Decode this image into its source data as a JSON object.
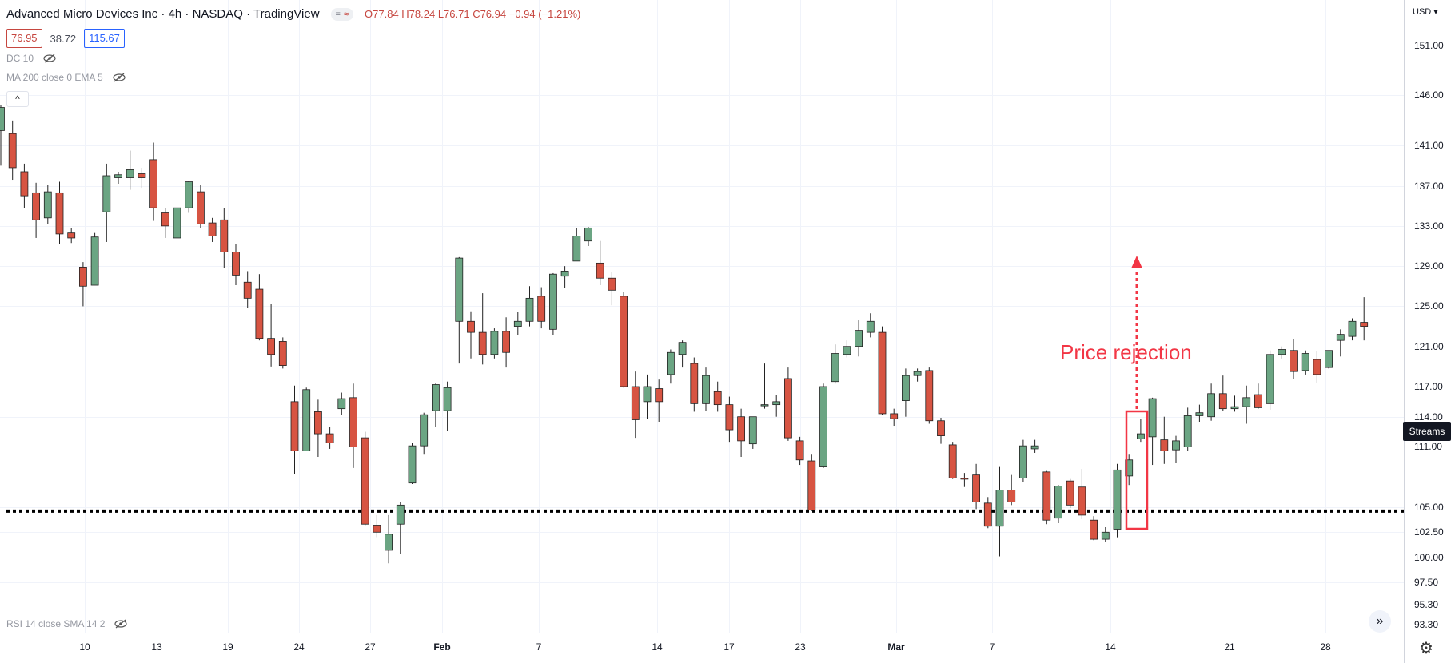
{
  "header": {
    "title": "Advanced Micro Devices Inc · 4h · NASDAQ · TradingView",
    "flag_left": "=",
    "flag_right": "≈",
    "ohlc": "O77.84  H78.24  L76.71  C76.94  −0.94 (−1.21%)",
    "sell_price": "76.95",
    "mid_value": "38.72",
    "buy_price": "115.67"
  },
  "indicators": {
    "dc": "DC 10",
    "ma": "MA 200 close 0 EMA 5",
    "rsi": "RSI 14 close SMA 14 2",
    "collapse": "^"
  },
  "price_scale": {
    "currency": "USD",
    "ticks": [
      "151.00",
      "146.00",
      "141.00",
      "137.00",
      "133.00",
      "129.00",
      "125.00",
      "121.00",
      "117.00",
      "114.00",
      "111.00",
      "105.00",
      "102.50",
      "100.00",
      "97.50",
      "95.30",
      "93.30"
    ],
    "streams_label": "Streams"
  },
  "time_scale": {
    "ticks": [
      {
        "label": "10",
        "bold": false
      },
      {
        "label": "13",
        "bold": false
      },
      {
        "label": "19",
        "bold": false
      },
      {
        "label": "24",
        "bold": false
      },
      {
        "label": "27",
        "bold": false
      },
      {
        "label": "Feb",
        "bold": true
      },
      {
        "label": "7",
        "bold": false
      },
      {
        "label": "14",
        "bold": false
      },
      {
        "label": "17",
        "bold": false
      },
      {
        "label": "23",
        "bold": false
      },
      {
        "label": "Mar",
        "bold": true
      },
      {
        "label": "7",
        "bold": false
      },
      {
        "label": "14",
        "bold": false
      },
      {
        "label": "21",
        "bold": false
      },
      {
        "label": "28",
        "bold": false
      }
    ],
    "goto_label": "»",
    "settings_icon": "⚙"
  },
  "annotation": {
    "text": "Price rejection",
    "support_level": 104.6,
    "color": "#f23645"
  },
  "colors": {
    "up": "#6ba583",
    "down": "#d75442",
    "grid": "#f0f3fa"
  },
  "chart_data": {
    "type": "candlestick",
    "title": "Advanced Micro Devices Inc · 4h · NASDAQ",
    "xlabel": "",
    "ylabel": "",
    "ylim": [
      92.5,
      155.5
    ],
    "grid": true,
    "legend": "none",
    "candles": [
      {
        "o": 142.5,
        "h": 145.0,
        "l": 139.0,
        "c": 144.8
      },
      {
        "o": 142.2,
        "h": 143.5,
        "l": 137.6,
        "c": 138.8
      },
      {
        "o": 138.4,
        "h": 139.2,
        "l": 134.8,
        "c": 136.0
      },
      {
        "o": 136.3,
        "h": 137.3,
        "l": 131.8,
        "c": 133.6
      },
      {
        "o": 133.8,
        "h": 137.1,
        "l": 133.2,
        "c": 136.4
      },
      {
        "o": 136.3,
        "h": 137.4,
        "l": 131.2,
        "c": 132.2
      },
      {
        "o": 132.3,
        "h": 132.8,
        "l": 131.3,
        "c": 131.8
      },
      {
        "o": 128.9,
        "h": 129.4,
        "l": 125.0,
        "c": 127.0
      },
      {
        "o": 127.1,
        "h": 132.3,
        "l": 127.1,
        "c": 131.9
      },
      {
        "o": 134.4,
        "h": 139.2,
        "l": 131.4,
        "c": 138.0
      },
      {
        "o": 137.8,
        "h": 138.4,
        "l": 137.2,
        "c": 138.1
      },
      {
        "o": 137.8,
        "h": 140.5,
        "l": 136.6,
        "c": 138.6
      },
      {
        "o": 138.2,
        "h": 138.8,
        "l": 136.8,
        "c": 137.8
      },
      {
        "o": 139.6,
        "h": 141.3,
        "l": 133.5,
        "c": 134.8
      },
      {
        "o": 134.3,
        "h": 134.8,
        "l": 131.8,
        "c": 133.0
      },
      {
        "o": 131.8,
        "h": 134.8,
        "l": 131.3,
        "c": 134.8
      },
      {
        "o": 134.8,
        "h": 137.5,
        "l": 134.3,
        "c": 137.4
      },
      {
        "o": 136.4,
        "h": 137.1,
        "l": 132.8,
        "c": 133.2
      },
      {
        "o": 133.3,
        "h": 133.8,
        "l": 131.4,
        "c": 132.0
      },
      {
        "o": 133.6,
        "h": 134.8,
        "l": 128.8,
        "c": 130.4
      },
      {
        "o": 130.4,
        "h": 131.2,
        "l": 127.1,
        "c": 128.1
      },
      {
        "o": 127.4,
        "h": 128.5,
        "l": 124.8,
        "c": 125.8
      },
      {
        "o": 126.7,
        "h": 128.2,
        "l": 121.6,
        "c": 121.8
      },
      {
        "o": 121.8,
        "h": 125.2,
        "l": 119.0,
        "c": 120.2
      },
      {
        "o": 121.5,
        "h": 121.9,
        "l": 118.8,
        "c": 119.1
      },
      {
        "o": 115.5,
        "h": 117.1,
        "l": 108.3,
        "c": 110.6
      },
      {
        "o": 110.6,
        "h": 116.9,
        "l": 110.6,
        "c": 116.7
      },
      {
        "o": 114.5,
        "h": 115.7,
        "l": 110.0,
        "c": 112.3
      },
      {
        "o": 112.3,
        "h": 113.0,
        "l": 110.8,
        "c": 111.4
      },
      {
        "o": 114.8,
        "h": 116.4,
        "l": 114.2,
        "c": 115.8
      },
      {
        "o": 115.9,
        "h": 117.3,
        "l": 108.9,
        "c": 111.0
      },
      {
        "o": 111.9,
        "h": 112.5,
        "l": 103.2,
        "c": 103.3
      },
      {
        "o": 103.2,
        "h": 104.2,
        "l": 102.0,
        "c": 102.5
      },
      {
        "o": 100.7,
        "h": 104.2,
        "l": 99.4,
        "c": 102.3
      },
      {
        "o": 103.3,
        "h": 105.5,
        "l": 100.3,
        "c": 105.2
      },
      {
        "o": 107.4,
        "h": 111.4,
        "l": 107.3,
        "c": 111.1
      },
      {
        "o": 111.1,
        "h": 114.4,
        "l": 110.3,
        "c": 114.2
      },
      {
        "o": 114.6,
        "h": 117.3,
        "l": 113.0,
        "c": 117.2
      },
      {
        "o": 114.6,
        "h": 117.5,
        "l": 112.6,
        "c": 116.9
      },
      {
        "o": 123.5,
        "h": 129.9,
        "l": 119.3,
        "c": 129.8
      },
      {
        "o": 123.5,
        "h": 124.5,
        "l": 119.8,
        "c": 122.4
      },
      {
        "o": 122.4,
        "h": 126.3,
        "l": 119.2,
        "c": 120.2
      },
      {
        "o": 120.2,
        "h": 122.8,
        "l": 119.8,
        "c": 122.5
      },
      {
        "o": 122.5,
        "h": 123.9,
        "l": 118.9,
        "c": 120.4
      },
      {
        "o": 123.0,
        "h": 124.4,
        "l": 122.1,
        "c": 123.5
      },
      {
        "o": 123.5,
        "h": 127.0,
        "l": 123.0,
        "c": 125.8
      },
      {
        "o": 126.0,
        "h": 126.9,
        "l": 122.8,
        "c": 123.5
      },
      {
        "o": 122.7,
        "h": 128.3,
        "l": 122.1,
        "c": 128.2
      },
      {
        "o": 128.0,
        "h": 129.0,
        "l": 126.8,
        "c": 128.5
      },
      {
        "o": 129.5,
        "h": 132.8,
        "l": 129.5,
        "c": 132.0
      },
      {
        "o": 131.5,
        "h": 132.9,
        "l": 131.0,
        "c": 132.8
      },
      {
        "o": 129.3,
        "h": 131.5,
        "l": 127.1,
        "c": 127.8
      },
      {
        "o": 127.8,
        "h": 128.4,
        "l": 125.1,
        "c": 126.6
      },
      {
        "o": 126.0,
        "h": 126.4,
        "l": 116.9,
        "c": 117.0
      },
      {
        "o": 117.0,
        "h": 118.5,
        "l": 111.9,
        "c": 113.7
      },
      {
        "o": 115.5,
        "h": 118.2,
        "l": 113.8,
        "c": 117.0
      },
      {
        "o": 116.8,
        "h": 117.7,
        "l": 113.5,
        "c": 115.5
      },
      {
        "o": 118.2,
        "h": 120.7,
        "l": 117.3,
        "c": 120.4
      },
      {
        "o": 120.2,
        "h": 121.6,
        "l": 118.9,
        "c": 121.4
      },
      {
        "o": 119.3,
        "h": 119.9,
        "l": 114.5,
        "c": 115.3
      },
      {
        "o": 115.3,
        "h": 118.9,
        "l": 114.6,
        "c": 118.1
      },
      {
        "o": 116.5,
        "h": 117.5,
        "l": 114.5,
        "c": 115.2
      },
      {
        "o": 115.2,
        "h": 116.0,
        "l": 111.5,
        "c": 112.7
      },
      {
        "o": 114.0,
        "h": 114.8,
        "l": 110.0,
        "c": 111.6
      },
      {
        "o": 111.3,
        "h": 114.0,
        "l": 110.8,
        "c": 114.0
      },
      {
        "o": 115.2,
        "h": 119.3,
        "l": 114.8,
        "c": 115.2
      },
      {
        "o": 115.2,
        "h": 116.2,
        "l": 114.0,
        "c": 115.5
      },
      {
        "o": 117.8,
        "h": 118.9,
        "l": 111.6,
        "c": 111.9
      },
      {
        "o": 111.6,
        "h": 112.0,
        "l": 109.2,
        "c": 109.7
      },
      {
        "o": 109.6,
        "h": 110.3,
        "l": 104.6,
        "c": 104.7
      },
      {
        "o": 109.0,
        "h": 117.3,
        "l": 108.9,
        "c": 117.0
      },
      {
        "o": 117.5,
        "h": 121.2,
        "l": 117.3,
        "c": 120.3
      },
      {
        "o": 120.2,
        "h": 121.6,
        "l": 119.9,
        "c": 121.0
      },
      {
        "o": 121.0,
        "h": 123.6,
        "l": 120.0,
        "c": 122.6
      },
      {
        "o": 122.4,
        "h": 124.3,
        "l": 121.9,
        "c": 123.5
      },
      {
        "o": 122.4,
        "h": 123.0,
        "l": 114.2,
        "c": 114.3
      },
      {
        "o": 114.3,
        "h": 114.8,
        "l": 113.1,
        "c": 113.8
      },
      {
        "o": 115.6,
        "h": 118.8,
        "l": 114.0,
        "c": 118.1
      },
      {
        "o": 118.1,
        "h": 118.8,
        "l": 117.5,
        "c": 118.5
      },
      {
        "o": 118.6,
        "h": 118.9,
        "l": 113.3,
        "c": 113.6
      },
      {
        "o": 113.6,
        "h": 113.9,
        "l": 111.3,
        "c": 112.1
      },
      {
        "o": 111.2,
        "h": 111.5,
        "l": 107.8,
        "c": 107.9
      },
      {
        "o": 107.9,
        "h": 108.4,
        "l": 107.0,
        "c": 107.8
      },
      {
        "o": 108.2,
        "h": 109.3,
        "l": 104.8,
        "c": 105.5
      },
      {
        "o": 105.4,
        "h": 106.0,
        "l": 102.9,
        "c": 103.1
      },
      {
        "o": 103.1,
        "h": 109.0,
        "l": 100.1,
        "c": 106.7
      },
      {
        "o": 106.7,
        "h": 108.2,
        "l": 105.2,
        "c": 105.5
      },
      {
        "o": 107.9,
        "h": 111.7,
        "l": 107.5,
        "c": 111.1
      },
      {
        "o": 110.8,
        "h": 111.7,
        "l": 110.4,
        "c": 111.1
      },
      {
        "o": 108.5,
        "h": 108.6,
        "l": 103.3,
        "c": 103.7
      },
      {
        "o": 103.9,
        "h": 107.2,
        "l": 103.4,
        "c": 107.1
      },
      {
        "o": 107.6,
        "h": 107.8,
        "l": 104.9,
        "c": 105.2
      },
      {
        "o": 107.0,
        "h": 108.8,
        "l": 103.8,
        "c": 104.2
      },
      {
        "o": 103.7,
        "h": 104.1,
        "l": 101.7,
        "c": 101.8
      },
      {
        "o": 101.8,
        "h": 103.0,
        "l": 101.5,
        "c": 102.5
      },
      {
        "o": 102.8,
        "h": 109.3,
        "l": 102.0,
        "c": 108.7
      },
      {
        "o": 108.1,
        "h": 110.3,
        "l": 107.2,
        "c": 109.7
      },
      {
        "o": 111.8,
        "h": 113.8,
        "l": 111.5,
        "c": 112.3
      },
      {
        "o": 112.0,
        "h": 115.9,
        "l": 109.2,
        "c": 115.8
      },
      {
        "o": 111.7,
        "h": 114.0,
        "l": 109.3,
        "c": 110.6
      },
      {
        "o": 110.7,
        "h": 112.1,
        "l": 109.4,
        "c": 111.6
      },
      {
        "o": 111.0,
        "h": 114.9,
        "l": 110.6,
        "c": 114.1
      },
      {
        "o": 114.1,
        "h": 115.2,
        "l": 113.5,
        "c": 114.4
      },
      {
        "o": 114.0,
        "h": 117.3,
        "l": 113.6,
        "c": 116.3
      },
      {
        "o": 116.3,
        "h": 118.1,
        "l": 114.6,
        "c": 114.8
      },
      {
        "o": 114.8,
        "h": 116.1,
        "l": 114.5,
        "c": 115.0
      },
      {
        "o": 115.0,
        "h": 117.1,
        "l": 113.3,
        "c": 115.9
      },
      {
        "o": 116.2,
        "h": 117.3,
        "l": 114.8,
        "c": 114.9
      },
      {
        "o": 115.3,
        "h": 120.6,
        "l": 114.7,
        "c": 120.2
      },
      {
        "o": 120.2,
        "h": 121.0,
        "l": 119.8,
        "c": 120.7
      },
      {
        "o": 120.6,
        "h": 121.7,
        "l": 117.8,
        "c": 118.5
      },
      {
        "o": 118.6,
        "h": 120.6,
        "l": 118.2,
        "c": 120.3
      },
      {
        "o": 119.7,
        "h": 120.5,
        "l": 117.4,
        "c": 118.2
      },
      {
        "o": 118.9,
        "h": 120.6,
        "l": 118.8,
        "c": 120.6
      },
      {
        "o": 121.6,
        "h": 122.7,
        "l": 120.0,
        "c": 122.2
      },
      {
        "o": 122.0,
        "h": 123.8,
        "l": 121.6,
        "c": 123.5
      },
      {
        "o": 123.4,
        "h": 125.9,
        "l": 121.6,
        "c": 123.0
      }
    ]
  }
}
